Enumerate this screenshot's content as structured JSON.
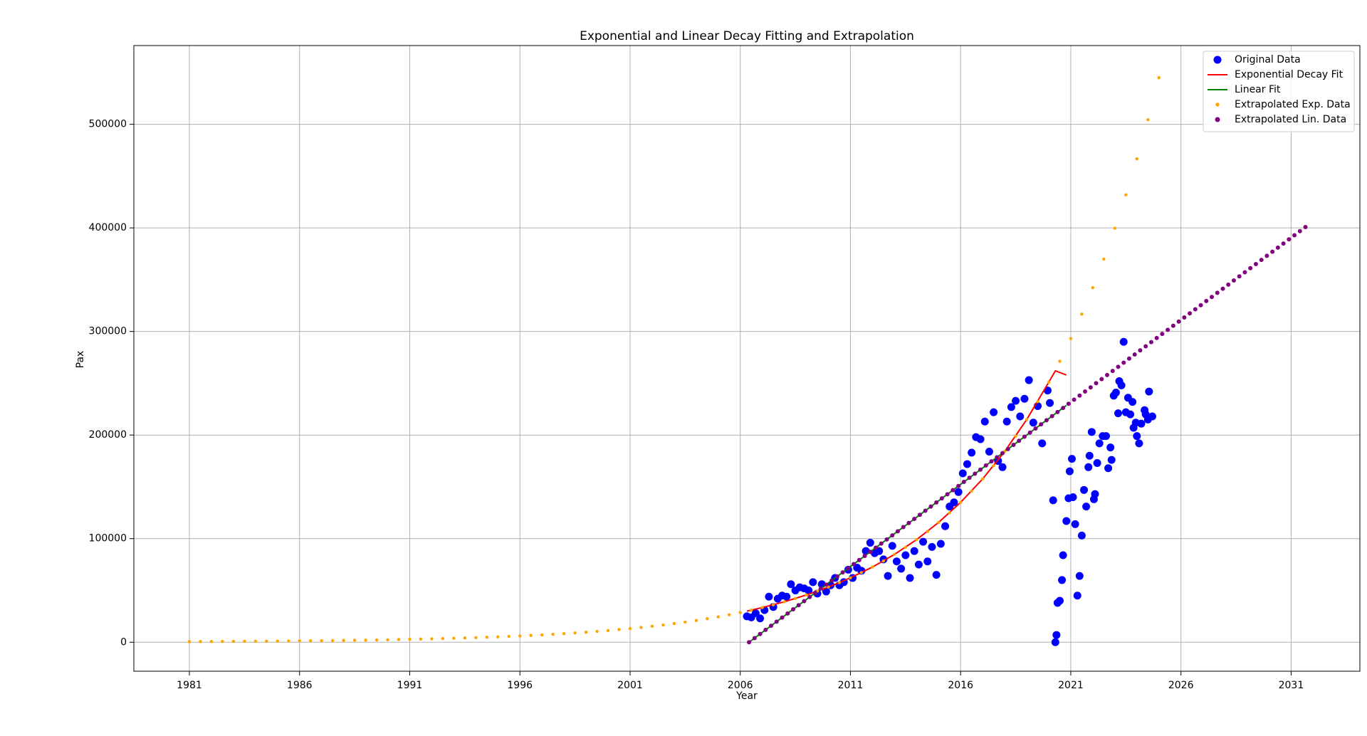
{
  "chart_data": {
    "type": "scatter",
    "title": "Exponential and Linear Decay Fitting and Extrapolation",
    "xlabel": "Year",
    "ylabel": "Pax",
    "xlim": [
      1978.48,
      2034.12
    ],
    "ylim": [
      -28000,
      576000
    ],
    "xticks": [
      1981,
      1986,
      1991,
      1996,
      2001,
      2006,
      2011,
      2016,
      2021,
      2026,
      2031
    ],
    "yticks": [
      0,
      100000,
      200000,
      300000,
      400000,
      500000
    ],
    "grid": true,
    "legend": "upper right",
    "series": [
      {
        "name": "Original Data",
        "kind": "scatter",
        "color": "#0000ff",
        "x": [
          2006.3,
          2006.5,
          2006.7,
          2006.9,
          2007.1,
          2007.3,
          2007.5,
          2007.7,
          2007.9,
          2008.1,
          2008.3,
          2008.5,
          2008.7,
          2008.9,
          2009.1,
          2009.3,
          2009.5,
          2009.7,
          2009.9,
          2010.1,
          2010.3,
          2010.5,
          2010.7,
          2010.9,
          2011.1,
          2011.3,
          2011.5,
          2011.7,
          2011.9,
          2012.1,
          2012.3,
          2012.5,
          2012.7,
          2012.9,
          2013.1,
          2013.3,
          2013.5,
          2013.7,
          2013.9,
          2014.1,
          2014.3,
          2014.5,
          2014.7,
          2014.9,
          2015.1,
          2015.3,
          2015.5,
          2015.7,
          2015.9,
          2016.1,
          2016.3,
          2016.5,
          2016.7,
          2016.9,
          2017.1,
          2017.3,
          2017.5,
          2017.7,
          2017.9,
          2018.1,
          2018.3,
          2018.5,
          2018.7,
          2018.9,
          2019.1,
          2019.3,
          2019.5,
          2019.7,
          2019.95,
          2020.05,
          2020.2,
          2020.3,
          2020.35,
          2020.4,
          2020.5,
          2020.6,
          2020.65,
          2020.8,
          2020.9,
          2020.95,
          2021.05,
          2021.1,
          2021.2,
          2021.3,
          2021.4,
          2021.5,
          2021.6,
          2021.7,
          2021.8,
          2021.85,
          2021.95,
          2022.05,
          2022.1,
          2022.2,
          2022.3,
          2022.45,
          2022.6,
          2022.7,
          2022.8,
          2022.85,
          2022.95,
          2023.05,
          2023.15,
          2023.2,
          2023.3,
          2023.4,
          2023.5,
          2023.6,
          2023.7,
          2023.8,
          2023.85,
          2023.95,
          2024.0,
          2024.1,
          2024.2,
          2024.35,
          2024.4,
          2024.5,
          2024.55,
          2024.7
        ],
        "values": [
          25000,
          24000,
          28000,
          23000,
          31000,
          44000,
          34000,
          42000,
          45000,
          44000,
          56000,
          50000,
          53000,
          52000,
          50000,
          58000,
          47000,
          56000,
          49000,
          55000,
          62000,
          55000,
          58000,
          70000,
          62000,
          72000,
          69000,
          88000,
          96000,
          86000,
          88000,
          80000,
          64000,
          93000,
          78000,
          71000,
          84000,
          62000,
          88000,
          75000,
          97000,
          78000,
          92000,
          65000,
          95000,
          112000,
          131000,
          135000,
          145000,
          163000,
          172000,
          183000,
          198000,
          196000,
          213000,
          184000,
          222000,
          175000,
          169000,
          213000,
          227000,
          233000,
          218000,
          235000,
          253000,
          212000,
          228000,
          192000,
          243000,
          231000,
          137000,
          0,
          7000,
          38000,
          40000,
          60000,
          84000,
          117000,
          139000,
          165000,
          177000,
          140000,
          114000,
          45000,
          64000,
          103000,
          147000,
          131000,
          169000,
          180000,
          203000,
          138000,
          143000,
          173000,
          192000,
          199000,
          199000,
          168000,
          188000,
          176000,
          238000,
          241000,
          221000,
          252000,
          248000,
          290000,
          222000,
          236000,
          220000,
          232000,
          207000,
          212000,
          199000,
          192000,
          211000,
          224000,
          220000,
          215000,
          242000,
          218000
        ]
      },
      {
        "name": "Exponential Decay Fit",
        "kind": "line",
        "color": "#ff0000",
        "x": [
          2006.3,
          2007,
          2008,
          2009,
          2010,
          2011,
          2012,
          2013,
          2014,
          2015,
          2016,
          2017,
          2018,
          2019,
          2020,
          2020.3,
          2020.8
        ],
        "values": [
          30000,
          33443,
          39052,
          45602,
          53250,
          62181,
          72610,
          84788,
          99008,
          115613,
          135003,
          157645,
          184085,
          214959,
          251012,
          262000,
          258000
        ]
      },
      {
        "name": "Linear Fit",
        "kind": "line",
        "color": "#008000",
        "x": [
          2006.4,
          2020.8
        ],
        "values": [
          0,
          228571
        ]
      },
      {
        "name": "Extrapolated Exp. Data",
        "kind": "scatter",
        "color": "#ffa500",
        "x": [
          1981,
          1981.5,
          1982,
          1982.5,
          1983,
          1983.5,
          1984,
          1984.5,
          1985,
          1985.5,
          1986,
          1986.5,
          1987,
          1987.5,
          1988,
          1988.5,
          1989,
          1989.5,
          1990,
          1990.5,
          1991,
          1991.5,
          1992,
          1992.5,
          1993,
          1993.5,
          1994,
          1994.5,
          1995,
          1995.5,
          1996,
          1996.5,
          1997,
          1997.5,
          1998,
          1998.5,
          1999,
          1999.5,
          2000,
          2000.5,
          2001,
          2001.5,
          2002,
          2002.5,
          2003,
          2003.5,
          2004,
          2004.5,
          2005,
          2005.5,
          2006,
          2006.5,
          2007,
          2007.5,
          2008,
          2008.5,
          2009,
          2009.5,
          2010,
          2010.5,
          2011,
          2011.5,
          2012,
          2012.5,
          2013,
          2013.5,
          2014,
          2014.5,
          2015,
          2015.5,
          2016,
          2016.5,
          2017,
          2017.5,
          2018,
          2018.5,
          2019,
          2019.5,
          2020,
          2020.5,
          2021,
          2021.5,
          2022,
          2022.5,
          2023,
          2023.5,
          2024,
          2024.5,
          2025
        ],
        "values": [
          594,
          642,
          693,
          749,
          810,
          875,
          945,
          1021,
          1104,
          1193,
          1289,
          1393,
          1505,
          1626,
          1758,
          1900,
          2053,
          2218,
          2397,
          2590,
          2799,
          3025,
          3268,
          3531,
          3816,
          4124,
          4456,
          4815,
          5204,
          5623,
          6076,
          6566,
          7095,
          7667,
          8285,
          8953,
          9675,
          10455,
          11297,
          12208,
          13192,
          14255,
          15404,
          16646,
          17988,
          19438,
          21004,
          22697,
          24527,
          26504,
          28640,
          30949,
          33443,
          36139,
          39052,
          42200,
          45602,
          49278,
          53250,
          57542,
          62181,
          67193,
          72610,
          78462,
          84788,
          91622,
          99008,
          106988,
          115613,
          124932,
          135003,
          145884,
          157645,
          170351,
          184085,
          198922,
          214959,
          232285,
          251012,
          271244,
          293110,
          316734,
          342270,
          369858,
          399675,
          431899,
          466709,
          504325,
          544985
        ]
      },
      {
        "name": "Extrapolated Lin. Data",
        "kind": "scatter",
        "color": "#800080",
        "x": [
          2006.4,
          2006.65,
          2006.9,
          2007.15,
          2007.4,
          2007.65,
          2007.9,
          2008.15,
          2008.4,
          2008.65,
          2008.9,
          2009.15,
          2009.4,
          2009.65,
          2009.9,
          2010.15,
          2010.4,
          2010.65,
          2010.9,
          2011.15,
          2011.4,
          2011.65,
          2011.9,
          2012.15,
          2012.4,
          2012.65,
          2012.9,
          2013.15,
          2013.4,
          2013.65,
          2013.9,
          2014.15,
          2014.4,
          2014.65,
          2014.9,
          2015.15,
          2015.4,
          2015.65,
          2015.9,
          2016.15,
          2016.4,
          2016.65,
          2016.9,
          2017.15,
          2017.4,
          2017.65,
          2017.9,
          2018.15,
          2018.4,
          2018.65,
          2018.9,
          2019.15,
          2019.4,
          2019.65,
          2019.9,
          2020.15,
          2020.4,
          2020.65,
          2020.9,
          2021.15,
          2021.4,
          2021.65,
          2021.9,
          2022.15,
          2022.4,
          2022.65,
          2022.9,
          2023.15,
          2023.4,
          2023.65,
          2023.9,
          2024.15,
          2024.4,
          2024.65,
          2024.9,
          2025.15,
          2025.4,
          2025.65,
          2025.9,
          2026.15,
          2026.4,
          2026.65,
          2026.9,
          2027.15,
          2027.4,
          2027.65,
          2027.9,
          2028.15,
          2028.4,
          2028.65,
          2028.9,
          2029.15,
          2029.4,
          2029.65,
          2029.9,
          2030.15,
          2030.4,
          2030.65,
          2030.9,
          2031.15,
          2031.4,
          2031.65
        ],
        "values": [
          0,
          3968,
          7937,
          11905,
          15873,
          19841,
          23810,
          27778,
          31746,
          35714,
          39683,
          43651,
          47619,
          51587,
          55556,
          59524,
          63492,
          67460,
          71429,
          75397,
          79365,
          83333,
          87302,
          91270,
          95238,
          99206,
          103175,
          107143,
          111111,
          115079,
          119048,
          123016,
          126984,
          130952,
          134921,
          138889,
          142857,
          146825,
          150794,
          154762,
          158730,
          162698,
          166667,
          170635,
          174603,
          178571,
          182540,
          186508,
          190476,
          194444,
          198413,
          202381,
          206349,
          210317,
          214286,
          218254,
          222222,
          226190,
          230159,
          234127,
          238095,
          242063,
          246032,
          250000,
          253968,
          257936,
          261905,
          265873,
          269841,
          273809,
          277778,
          281746,
          285714,
          289682,
          293651,
          297619,
          301587,
          305555,
          309524,
          313492,
          317460,
          321428,
          325397,
          329365,
          333333,
          337301,
          341270,
          345238,
          349206,
          353174,
          357143,
          361111,
          365079,
          369047,
          373016,
          376984,
          380952,
          384920,
          388889,
          392857,
          396825,
          400793
        ]
      }
    ]
  }
}
